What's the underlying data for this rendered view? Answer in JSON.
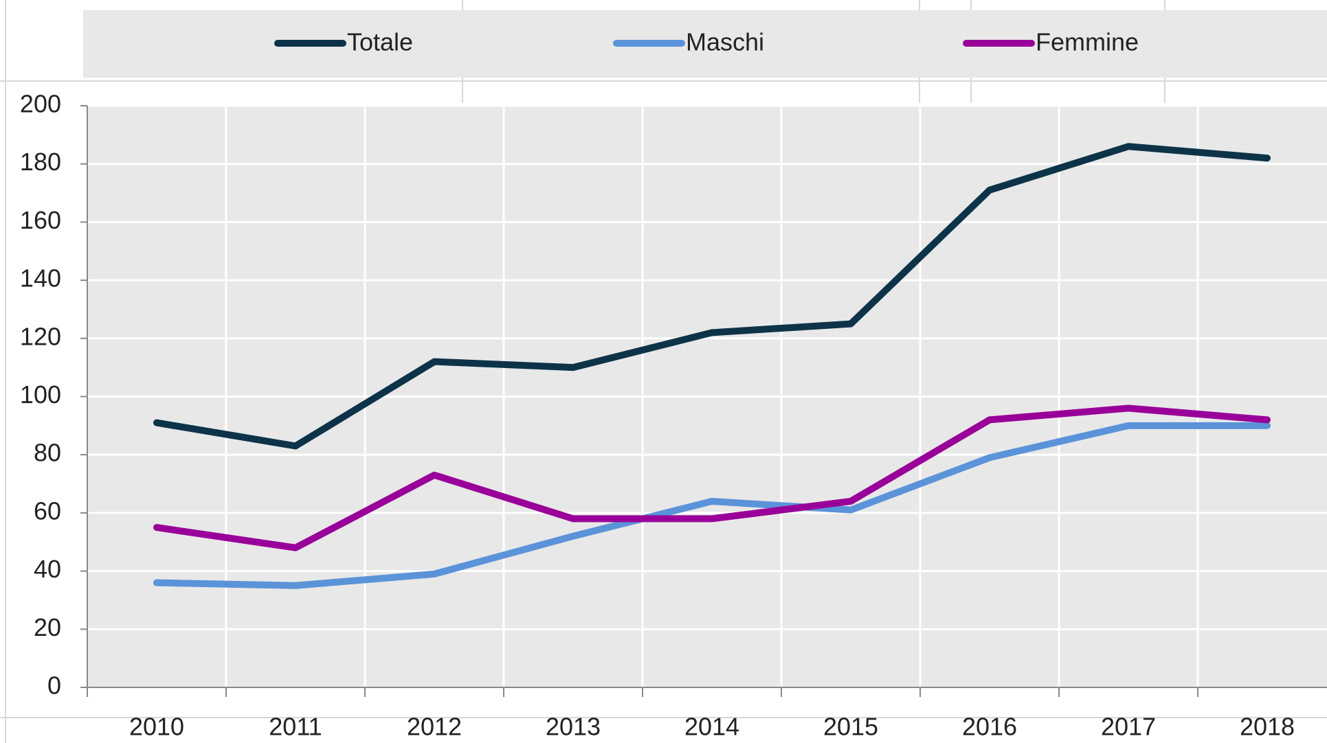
{
  "chart_data": {
    "type": "line",
    "categories": [
      "2010",
      "2011",
      "2012",
      "2013",
      "2014",
      "2015",
      "2016",
      "2017",
      "2018"
    ],
    "series": [
      {
        "name": "Totale",
        "color": "#0d3349",
        "values": [
          91,
          83,
          112,
          110,
          122,
          125,
          171,
          186,
          182
        ]
      },
      {
        "name": "Maschi",
        "color": "#5b93d9",
        "values": [
          36,
          35,
          39,
          52,
          64,
          61,
          79,
          90,
          90
        ]
      },
      {
        "name": "Femmine",
        "color": "#990099",
        "values": [
          55,
          48,
          73,
          58,
          58,
          64,
          92,
          96,
          92
        ]
      }
    ],
    "ylim": [
      0,
      200
    ],
    "yticks": [
      0,
      20,
      40,
      60,
      80,
      100,
      120,
      140,
      160,
      180,
      200
    ],
    "grid": true,
    "legend": "top"
  }
}
